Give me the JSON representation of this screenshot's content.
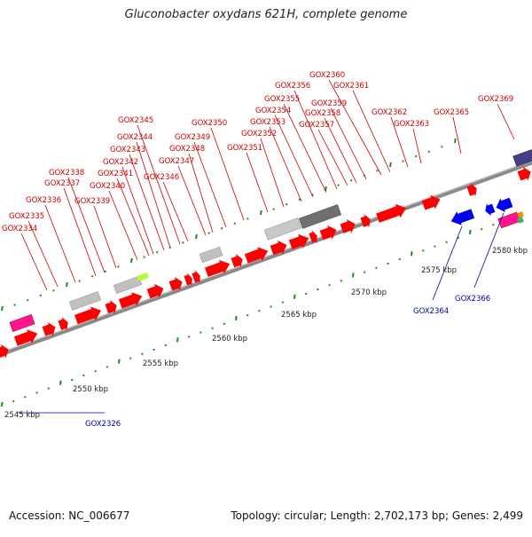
{
  "title": "Gluconobacter oxydans 621H, complete genome",
  "footer": {
    "accession": "Accession: NC_006677",
    "info": "Topology: circular; Length: 2,702,173 bp; Genes: 2,499"
  },
  "ruler_unit": "kbp",
  "ruler_labels": [
    "2545 kbp",
    "2550 kbp",
    "2555 kbp",
    "2560 kbp",
    "2565 kbp",
    "2570 kbp",
    "2575 kbp",
    "2580 kbp"
  ],
  "colors": {
    "forward_gene": "#ff0000",
    "reverse_gene": "#0000ee",
    "label_forward": "#cc0000",
    "label_reverse": "#0000aa",
    "backbone": "#888888",
    "tick": "#228b22"
  },
  "genes": {
    "forward": [
      "GOX2334",
      "GOX2335",
      "GOX2336",
      "GOX2337",
      "GOX2338",
      "GOX2339",
      "GOX2340",
      "GOX2341",
      "GOX2342",
      "GOX2343",
      "GOX2344",
      "GOX2345",
      "GOX2346",
      "GOX2347",
      "GOX2348",
      "GOX2349",
      "GOX2350",
      "GOX2351",
      "GOX2352",
      "GOX2353",
      "GOX2354",
      "GOX2355",
      "GOX2356",
      "GOX2357",
      "GOX2358",
      "GOX2359",
      "GOX2360",
      "GOX2361",
      "GOX2362",
      "GOX2363",
      "GOX2365",
      "GOX2369"
    ],
    "reverse": [
      "GOX2364",
      "GOX2366",
      "GOX2326"
    ]
  }
}
